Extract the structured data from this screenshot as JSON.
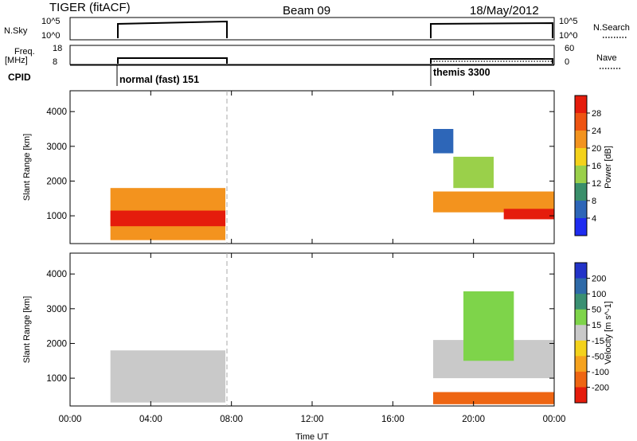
{
  "header": {
    "radar": "TIGER (fitACF)",
    "beam": "Beam 09",
    "date": "18/May/2012"
  },
  "status_panels": {
    "nsky_label": "N.Sky",
    "nsky_ticks": [
      "10^5",
      "10^0"
    ],
    "nsearch_label": "N.Search",
    "freq_label": "Freq.",
    "freq_unit": "[MHz]",
    "freq_ticks": [
      "18",
      "8"
    ],
    "nave_ticks": [
      "60",
      "0"
    ],
    "nave_label": "Nave",
    "cpid_label": "CPID",
    "cpid_segments": [
      {
        "label": "normal (fast) 151",
        "start_ut": 2.0,
        "end_ut": 7.7
      },
      {
        "label": "themis 3300",
        "start_ut": 18.0,
        "end_ut": 24.0
      }
    ]
  },
  "chart_data": [
    {
      "type": "heatmap",
      "name": "power",
      "ylabel": "Slant Range [km]",
      "ylim": [
        200,
        4600
      ],
      "y_ticks": [
        "1000",
        "2000",
        "3000",
        "4000"
      ],
      "y_tick_values": [
        1000,
        2000,
        3000,
        4000
      ],
      "xlim": [
        0,
        24
      ],
      "colorbar_label": "Power [dB]",
      "colorbar_ticks": [
        "4",
        "8",
        "12",
        "16",
        "20",
        "24",
        "28"
      ],
      "colorbar_range": [
        0,
        32
      ],
      "colorbar_colors": [
        "#1e2cf0",
        "#2d66b8",
        "#3a8f6b",
        "#9ad04a",
        "#f4d21a",
        "#f3931e",
        "#ee5412",
        "#e51c0c"
      ],
      "regions": [
        {
          "x0": 2.0,
          "x1": 7.7,
          "y0": 300,
          "y1": 1800,
          "level": 20
        },
        {
          "x0": 2.0,
          "x1": 7.7,
          "y0": 700,
          "y1": 1150,
          "level": 30
        },
        {
          "x0": 18.0,
          "x1": 24.0,
          "y0": 1100,
          "y1": 1700,
          "level": 20
        },
        {
          "x0": 21.5,
          "x1": 24.0,
          "y0": 900,
          "y1": 1200,
          "level": 30
        },
        {
          "x0": 19.0,
          "x1": 21.0,
          "y0": 1800,
          "y1": 2700,
          "level": 12
        },
        {
          "x0": 18.0,
          "x1": 19.0,
          "y0": 2800,
          "y1": 3500,
          "level": 6
        }
      ]
    },
    {
      "type": "heatmap",
      "name": "velocity",
      "ylabel": "Slant Range [km]",
      "ylim": [
        200,
        4600
      ],
      "y_ticks": [
        "1000",
        "2000",
        "3000",
        "4000"
      ],
      "y_tick_values": [
        1000,
        2000,
        3000,
        4000
      ],
      "xlim": [
        0,
        24
      ],
      "x_ticks": [
        "00:00",
        "04:00",
        "08:00",
        "12:00",
        "16:00",
        "20:00",
        "00:00"
      ],
      "x_tick_values": [
        0,
        4,
        8,
        12,
        16,
        20,
        24
      ],
      "xlabel": "Time UT",
      "colorbar_label": "Velocity [m s^-1]",
      "colorbar_ticks": [
        "200",
        "100",
        "50",
        "15",
        "-15",
        "-50",
        "-100",
        "-200"
      ],
      "colorbar_colors": [
        "#2233c8",
        "#2e6aa8",
        "#3a9072",
        "#7ed44a",
        "#c9c9c9",
        "#f3d21c",
        "#f5a21e",
        "#ee6512",
        "#e51c0c"
      ],
      "regions": [
        {
          "x0": 2.0,
          "x1": 7.7,
          "y0": 300,
          "y1": 1800,
          "level": 0
        },
        {
          "x0": 18.0,
          "x1": 24.0,
          "y0": 1000,
          "y1": 2100,
          "level": 0
        },
        {
          "x0": 19.5,
          "x1": 22.0,
          "y0": 1500,
          "y1": 3500,
          "level": 30
        },
        {
          "x0": 18.0,
          "x1": 24.0,
          "y0": 250,
          "y1": 600,
          "level": -120
        }
      ]
    }
  ]
}
